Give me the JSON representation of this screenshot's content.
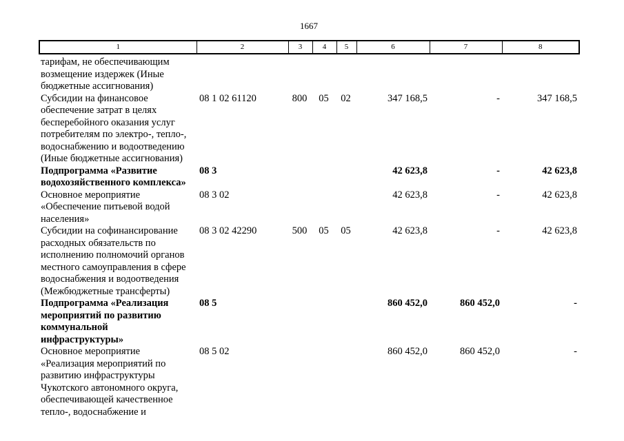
{
  "page": {
    "number": "1667"
  },
  "table": {
    "header_cols": [
      "1",
      "2",
      "3",
      "4",
      "5",
      "6",
      "7",
      "8"
    ],
    "rows": [
      {
        "c1": "тарифам, не обеспечивающим\nвозмещение издержек (Иные\nбюджетные ассигнования)",
        "c2": "",
        "c3": "",
        "c4": "",
        "c5": "",
        "c6": "",
        "c7": "",
        "c8": "",
        "bold": false
      },
      {
        "c1": "Субсидии на финансовое\nобеспечение затрат в целях\nбесперебойного оказания услуг\nпотребителям по электро-, тепло-,\nводоснабжению и водоотведению\n(Иные бюджетные ассигнования)",
        "c2": "08 1 02 61120",
        "c3": "800",
        "c4": "05",
        "c5": "02",
        "c6": "347 168,5",
        "c7": "-",
        "c8": "347 168,5",
        "bold": false
      },
      {
        "c1": "Подпрограмма «Развитие\nводохозяйственного комплекса»",
        "c2": "08 3",
        "c3": "",
        "c4": "",
        "c5": "",
        "c6": "42 623,8",
        "c7": "-",
        "c8": "42 623,8",
        "bold": true
      },
      {
        "c1": "Основное мероприятие\n«Обеспечение питьевой водой\nнаселения»",
        "c2": "08 3 02",
        "c3": "",
        "c4": "",
        "c5": "",
        "c6": "42 623,8",
        "c7": "-",
        "c8": "42 623,8",
        "bold": false
      },
      {
        "c1": "Субсидии на софинансирование\nрасходных обязательств по\nисполнению полномочий органов\nместного самоуправления в сфере\nводоснабжения и водоотведения\n(Межбюджетные трансферты)",
        "c2": "08 3 02 42290",
        "c3": "500",
        "c4": "05",
        "c5": "05",
        "c6": "42 623,8",
        "c7": "-",
        "c8": "42 623,8",
        "bold": false
      },
      {
        "c1": "Подпрограмма «Реализация\nмероприятий по развитию\nкоммунальной\nинфраструктуры»",
        "c2": "08 5",
        "c3": "",
        "c4": "",
        "c5": "",
        "c6": "860 452,0",
        "c7": "860 452,0",
        "c8": "-",
        "bold": true
      },
      {
        "c1": "Основное мероприятие\n«Реализация мероприятий по\nразвитию инфраструктуры\nЧукотского автономного округа,\nобеспечивающей качественное\nтепло-, водоснабжение и",
        "c2": "08 5 02",
        "c3": "",
        "c4": "",
        "c5": "",
        "c6": "860 452,0",
        "c7": "860 452,0",
        "c8": "-",
        "bold": false
      }
    ]
  }
}
